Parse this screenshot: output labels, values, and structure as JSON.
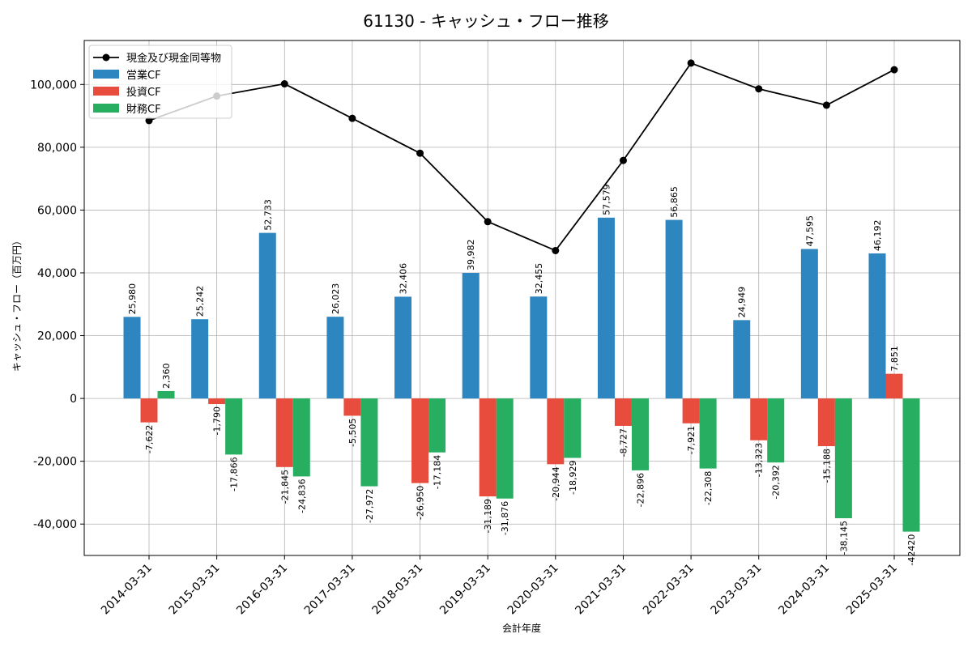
{
  "chart_data": {
    "type": "bar",
    "title": "61130 - キャッシュ・フロー推移",
    "xlabel": "会計年度",
    "ylabel": "キャッシュ・フロー（百万円）",
    "ylim": [
      -50000,
      114000
    ],
    "yticks": [
      -40000,
      -20000,
      0,
      20000,
      40000,
      60000,
      80000,
      100000
    ],
    "ytick_labels": [
      "-40,000",
      "-20,000",
      "0",
      "20,000",
      "40,000",
      "60,000",
      "80,000",
      "100,000"
    ],
    "grid": true,
    "legend_position": "top-left",
    "categories": [
      "2014-03-31",
      "2015-03-31",
      "2016-03-31",
      "2017-03-31",
      "2018-03-31",
      "2019-03-31",
      "2020-03-31",
      "2021-03-31",
      "2022-03-31",
      "2023-03-31",
      "2024-03-31",
      "2025-03-31"
    ],
    "series": [
      {
        "name": "営業CF",
        "kind": "bar",
        "color": "#2e86c1",
        "values": [
          25980,
          25242,
          52733,
          26023,
          32406,
          39982,
          32455,
          57579,
          56865,
          24949,
          47595,
          46192
        ],
        "labels": [
          "25,980",
          "25,242",
          "52,733",
          "26,023",
          "32,406",
          "39,982",
          "32,455",
          "57,579",
          "56,865",
          "24,949",
          "47,595",
          "46,192"
        ]
      },
      {
        "name": "投資CF",
        "kind": "bar",
        "color": "#e74c3c",
        "values": [
          -7622,
          -1790,
          -21845,
          -5505,
          -26950,
          -31189,
          -20944,
          -8727,
          -7921,
          -13323,
          -15188,
          7851
        ],
        "labels": [
          "-7,622",
          "-1,790",
          "-21,845",
          "-5,505",
          "-26,950",
          "-31,189",
          "-20,944",
          "-8,727",
          "-7,921",
          "-13,323",
          "-15,188",
          "7,851"
        ]
      },
      {
        "name": "財務CF",
        "kind": "bar",
        "color": "#27ae60",
        "values": [
          2360,
          -17866,
          -24836,
          -27972,
          -17184,
          -31876,
          -18929,
          -22896,
          -22308,
          -20392,
          -38145,
          -42420
        ],
        "labels": [
          "2,360",
          "-17,866",
          "-24,836",
          "-27,972",
          "-17,184",
          "-31,876",
          "-18,929",
          "-22,896",
          "-22,308",
          "-20,392",
          "-38,145",
          "-42420"
        ]
      },
      {
        "name": "現金及び現金同等物",
        "kind": "line",
        "color": "#000000",
        "values": [
          88500,
          96300,
          100200,
          89200,
          78100,
          56300,
          47100,
          75800,
          106800,
          98600,
          93400,
          104700
        ]
      }
    ]
  }
}
